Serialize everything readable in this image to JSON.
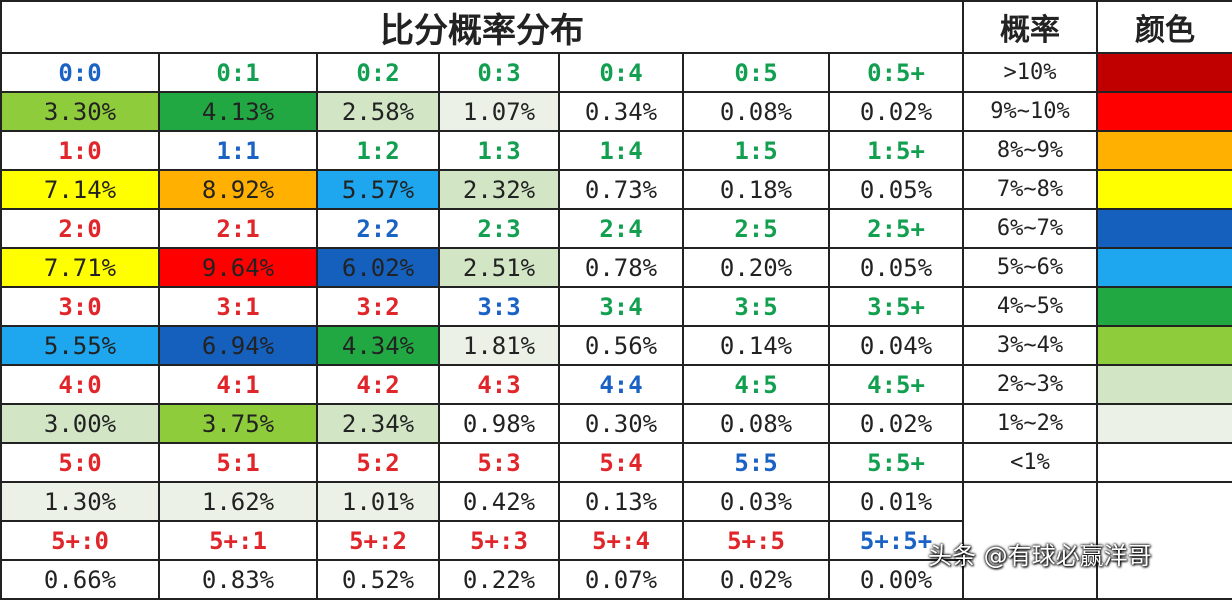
{
  "title": "比分概率分布",
  "legend_header_prob": "概率",
  "legend_header_color": "颜色",
  "legend": [
    {
      "range": ">10%",
      "color": "#c00000"
    },
    {
      "range": "9%~10%",
      "color": "#ff0000"
    },
    {
      "range": "8%~9%",
      "color": "#ffb000"
    },
    {
      "range": "7%~8%",
      "color": "#ffff00"
    },
    {
      "range": "6%~7%",
      "color": "#1560bd"
    },
    {
      "range": "5%~6%",
      "color": "#1ea7ef"
    },
    {
      "range": "4%~5%",
      "color": "#22a843"
    },
    {
      "range": "3%~4%",
      "color": "#8fcc3c"
    },
    {
      "range": "2%~3%",
      "color": "#d2e6c6"
    },
    {
      "range": "1%~2%",
      "color": "#ebf1e6"
    },
    {
      "range": "<1%",
      "color": "#ffffff"
    }
  ],
  "rows": [
    {
      "home": "0",
      "cells": [
        {
          "score": "0:0",
          "pct": "3.30%",
          "scolor": "blue",
          "bg": "#8fcc3c"
        },
        {
          "score": "0:1",
          "pct": "4.13%",
          "scolor": "green",
          "bg": "#22a843"
        },
        {
          "score": "0:2",
          "pct": "2.58%",
          "scolor": "green",
          "bg": "#d2e6c6"
        },
        {
          "score": "0:3",
          "pct": "1.07%",
          "scolor": "green",
          "bg": "#ebf1e6"
        },
        {
          "score": "0:4",
          "pct": "0.34%",
          "scolor": "green",
          "bg": "#ffffff"
        },
        {
          "score": "0:5",
          "pct": "0.08%",
          "scolor": "green",
          "bg": "#ffffff"
        },
        {
          "score": "0:5+",
          "pct": "0.02%",
          "scolor": "green",
          "bg": "#ffffff"
        }
      ]
    },
    {
      "home": "1",
      "cells": [
        {
          "score": "1:0",
          "pct": "7.14%",
          "scolor": "red",
          "bg": "#ffff00"
        },
        {
          "score": "1:1",
          "pct": "8.92%",
          "scolor": "blue",
          "bg": "#ffb000"
        },
        {
          "score": "1:2",
          "pct": "5.57%",
          "scolor": "green",
          "bg": "#1ea7ef"
        },
        {
          "score": "1:3",
          "pct": "2.32%",
          "scolor": "green",
          "bg": "#d2e6c6"
        },
        {
          "score": "1:4",
          "pct": "0.73%",
          "scolor": "green",
          "bg": "#ffffff"
        },
        {
          "score": "1:5",
          "pct": "0.18%",
          "scolor": "green",
          "bg": "#ffffff"
        },
        {
          "score": "1:5+",
          "pct": "0.05%",
          "scolor": "green",
          "bg": "#ffffff"
        }
      ]
    },
    {
      "home": "2",
      "cells": [
        {
          "score": "2:0",
          "pct": "7.71%",
          "scolor": "red",
          "bg": "#ffff00"
        },
        {
          "score": "2:1",
          "pct": "9.64%",
          "scolor": "red",
          "bg": "#ff0000"
        },
        {
          "score": "2:2",
          "pct": "6.02%",
          "scolor": "blue",
          "bg": "#1560bd"
        },
        {
          "score": "2:3",
          "pct": "2.51%",
          "scolor": "green",
          "bg": "#d2e6c6"
        },
        {
          "score": "2:4",
          "pct": "0.78%",
          "scolor": "green",
          "bg": "#ffffff"
        },
        {
          "score": "2:5",
          "pct": "0.20%",
          "scolor": "green",
          "bg": "#ffffff"
        },
        {
          "score": "2:5+",
          "pct": "0.05%",
          "scolor": "green",
          "bg": "#ffffff"
        }
      ]
    },
    {
      "home": "3",
      "cells": [
        {
          "score": "3:0",
          "pct": "5.55%",
          "scolor": "red",
          "bg": "#1ea7ef"
        },
        {
          "score": "3:1",
          "pct": "6.94%",
          "scolor": "red",
          "bg": "#1560bd"
        },
        {
          "score": "3:2",
          "pct": "4.34%",
          "scolor": "red",
          "bg": "#22a843"
        },
        {
          "score": "3:3",
          "pct": "1.81%",
          "scolor": "blue",
          "bg": "#ebf1e6"
        },
        {
          "score": "3:4",
          "pct": "0.56%",
          "scolor": "green",
          "bg": "#ffffff"
        },
        {
          "score": "3:5",
          "pct": "0.14%",
          "scolor": "green",
          "bg": "#ffffff"
        },
        {
          "score": "3:5+",
          "pct": "0.04%",
          "scolor": "green",
          "bg": "#ffffff"
        }
      ]
    },
    {
      "home": "4",
      "cells": [
        {
          "score": "4:0",
          "pct": "3.00%",
          "scolor": "red",
          "bg": "#d2e6c6"
        },
        {
          "score": "4:1",
          "pct": "3.75%",
          "scolor": "red",
          "bg": "#8fcc3c"
        },
        {
          "score": "4:2",
          "pct": "2.34%",
          "scolor": "red",
          "bg": "#d2e6c6"
        },
        {
          "score": "4:3",
          "pct": "0.98%",
          "scolor": "red",
          "bg": "#ffffff"
        },
        {
          "score": "4:4",
          "pct": "0.30%",
          "scolor": "blue",
          "bg": "#ffffff"
        },
        {
          "score": "4:5",
          "pct": "0.08%",
          "scolor": "green",
          "bg": "#ffffff"
        },
        {
          "score": "4:5+",
          "pct": "0.02%",
          "scolor": "green",
          "bg": "#ffffff"
        }
      ]
    },
    {
      "home": "5",
      "cells": [
        {
          "score": "5:0",
          "pct": "1.30%",
          "scolor": "red",
          "bg": "#ebf1e6"
        },
        {
          "score": "5:1",
          "pct": "1.62%",
          "scolor": "red",
          "bg": "#ebf1e6"
        },
        {
          "score": "5:2",
          "pct": "1.01%",
          "scolor": "red",
          "bg": "#ebf1e6"
        },
        {
          "score": "5:3",
          "pct": "0.42%",
          "scolor": "red",
          "bg": "#ffffff"
        },
        {
          "score": "5:4",
          "pct": "0.13%",
          "scolor": "red",
          "bg": "#ffffff"
        },
        {
          "score": "5:5",
          "pct": "0.03%",
          "scolor": "blue",
          "bg": "#ffffff"
        },
        {
          "score": "5:5+",
          "pct": "0.01%",
          "scolor": "green",
          "bg": "#ffffff"
        }
      ]
    },
    {
      "home": "5+",
      "cells": [
        {
          "score": "5+:0",
          "pct": "0.66%",
          "scolor": "red",
          "bg": "#ffffff"
        },
        {
          "score": "5+:1",
          "pct": "0.83%",
          "scolor": "red",
          "bg": "#ffffff"
        },
        {
          "score": "5+:2",
          "pct": "0.52%",
          "scolor": "red",
          "bg": "#ffffff"
        },
        {
          "score": "5+:3",
          "pct": "0.22%",
          "scolor": "red",
          "bg": "#ffffff"
        },
        {
          "score": "5+:4",
          "pct": "0.07%",
          "scolor": "red",
          "bg": "#ffffff"
        },
        {
          "score": "5+:5",
          "pct": "0.02%",
          "scolor": "red",
          "bg": "#ffffff"
        },
        {
          "score": "5+:5+",
          "pct": "0.00%",
          "scolor": "blue",
          "bg": "#ffffff"
        }
      ]
    }
  ],
  "watermark": "头条 @有球必赢洋哥"
}
